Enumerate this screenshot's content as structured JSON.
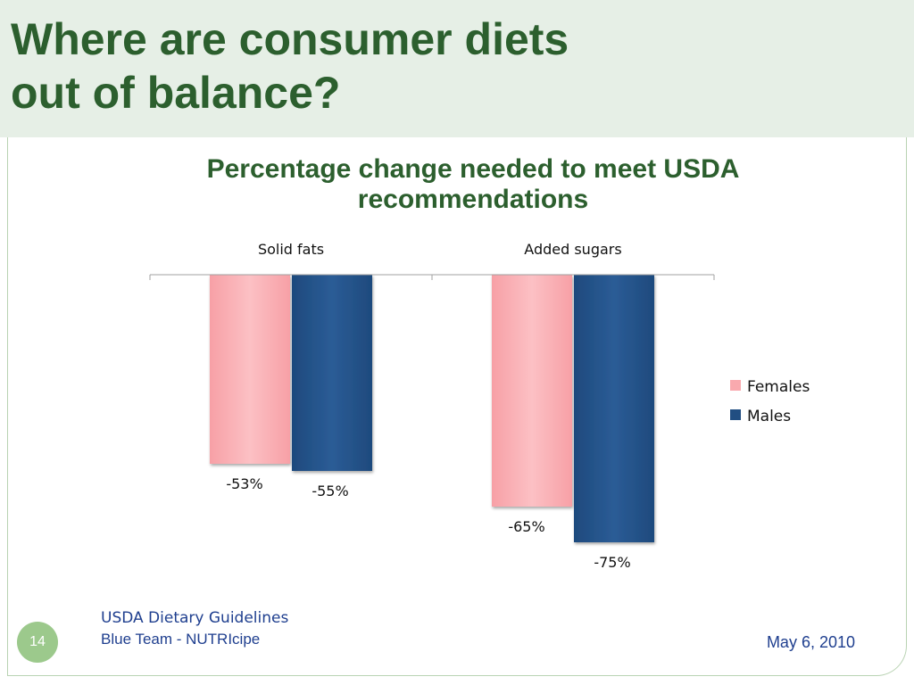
{
  "slide": {
    "title_line1": "Where are consumer diets",
    "title_line2": "out of balance?",
    "number": "14",
    "footer_line1": "USDA Dietary Guidelines",
    "footer_line2": "Blue Team - NUTRIcipe",
    "date": "May 6, 2010"
  },
  "colors": {
    "title": "#2c5f2e",
    "Females": "#f9a9ae",
    "Males": "#214e82",
    "footer_text": "#1f3f8f",
    "slide_number_badge": "#9cc98c"
  },
  "chart_data": {
    "type": "bar",
    "title": "Percentage change needed to meet USDA recommendations",
    "categories": [
      "Solid fats",
      "Added sugars"
    ],
    "series": [
      {
        "name": "Females",
        "values": [
          -53,
          -65
        ],
        "labels": [
          "-53%",
          "-65%"
        ]
      },
      {
        "name": "Males",
        "values": [
          -55,
          -75
        ],
        "labels": [
          "-55%",
          "-75%"
        ]
      }
    ],
    "ylim": [
      -75,
      0
    ],
    "category_axis_position": "top",
    "grid": false,
    "legend": "right"
  }
}
